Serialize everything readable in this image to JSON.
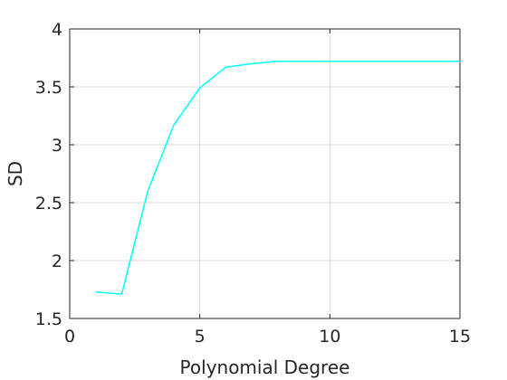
{
  "chart_data": {
    "type": "line",
    "xlabel": "Polynomial Degree",
    "ylabel": "SD",
    "xlim": [
      0,
      15
    ],
    "ylim": [
      1.5,
      4
    ],
    "xticks": [
      0,
      5,
      10,
      15
    ],
    "yticks": [
      1.5,
      2,
      2.5,
      3,
      3.5,
      4
    ],
    "xtick_labels": [
      "0",
      "5",
      "10",
      "15"
    ],
    "ytick_labels": [
      "1.5",
      "2",
      "2.5",
      "3",
      "3.5",
      "4"
    ],
    "grid": true,
    "line_color": "#00ffff",
    "series": [
      {
        "x": [
          1,
          2,
          3,
          4,
          5,
          6,
          7,
          8,
          9,
          10,
          11,
          12,
          13,
          14,
          15
        ],
        "y": [
          1.73,
          1.71,
          2.6,
          3.17,
          3.49,
          3.67,
          3.7,
          3.72,
          3.72,
          3.72,
          3.72,
          3.72,
          3.72,
          3.72,
          3.72
        ]
      }
    ]
  }
}
